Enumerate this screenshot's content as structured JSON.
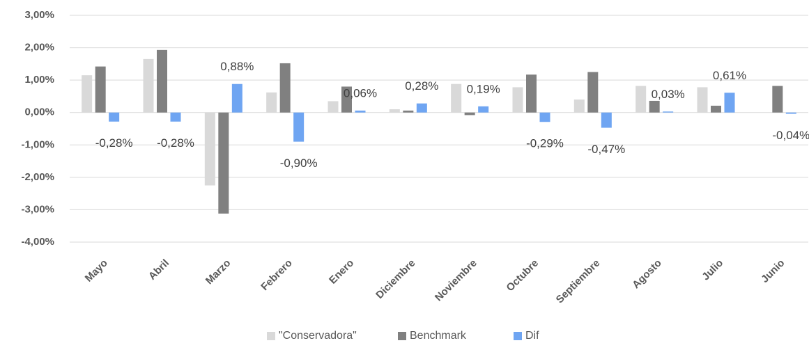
{
  "chart_data": {
    "type": "bar",
    "categories": [
      "Mayo",
      "Abril",
      "Marzo",
      "Febrero",
      "Enero",
      "Diciembre",
      "Noviembre",
      "Octubre",
      "Septiembre",
      "Agosto",
      "Julio",
      "Junio"
    ],
    "series": [
      {
        "name": "\"Conservadora\"",
        "color": "#d9d9d9",
        "values": [
          1.15,
          1.65,
          -2.25,
          0.62,
          0.35,
          0.1,
          0.88,
          0.78,
          0.4,
          0.82,
          0.78,
          null
        ]
      },
      {
        "name": "Benchmark",
        "color": "#808080",
        "values": [
          1.42,
          1.93,
          -3.12,
          1.52,
          0.8,
          0.06,
          -0.08,
          1.17,
          1.25,
          0.36,
          0.21,
          0.82
        ]
      },
      {
        "name": "Dif",
        "color": "#6fa5f2",
        "values": [
          -0.28,
          -0.28,
          0.88,
          -0.9,
          0.06,
          0.28,
          0.19,
          -0.29,
          -0.47,
          0.03,
          0.61,
          -0.04
        ],
        "value_labels": [
          "-0,28%",
          "-0,28%",
          "0,88%",
          "-0,90%",
          "0,06%",
          "0,28%",
          "0,19%",
          "-0,29%",
          "-0,47%",
          "0,03%",
          "0,61%",
          "-0,04%"
        ]
      }
    ],
    "ylim": [
      -4,
      3
    ],
    "yticks": [
      {
        "value": -4,
        "label": "-4,00%"
      },
      {
        "value": -3,
        "label": "-3,00%"
      },
      {
        "value": -2,
        "label": "-2,00%"
      },
      {
        "value": -1,
        "label": "-1,00%"
      },
      {
        "value": 0,
        "label": "0,00%"
      },
      {
        "value": 1,
        "label": "1,00%"
      },
      {
        "value": 2,
        "label": "2,00%"
      },
      {
        "value": 3,
        "label": "3,00%"
      }
    ],
    "grid": true,
    "legend": "bottom"
  }
}
